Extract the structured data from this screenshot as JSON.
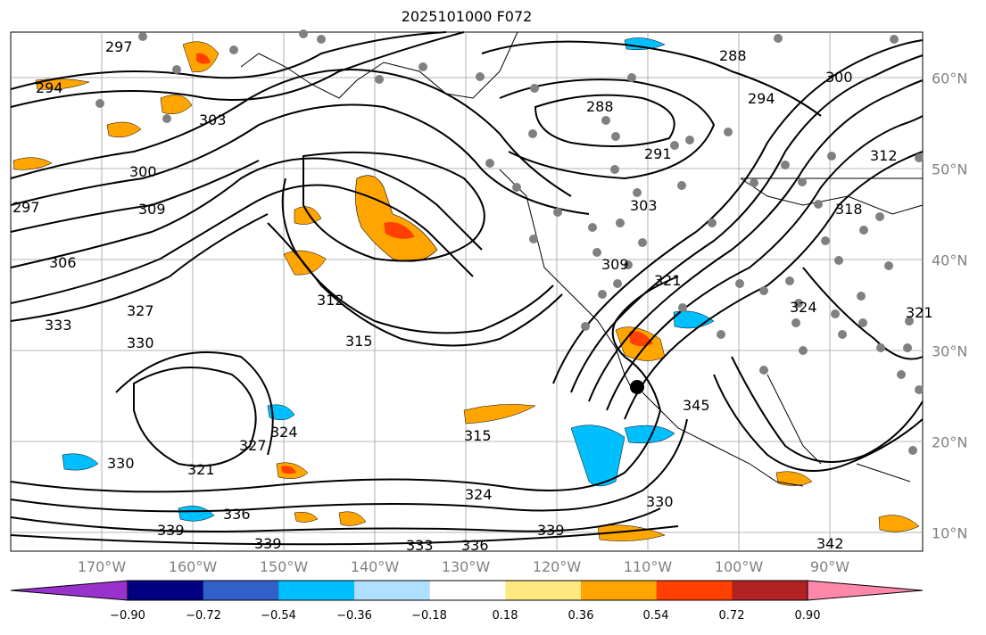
{
  "title": "2025101000 F072",
  "map": {
    "lon_ticks": [
      "170°W",
      "160°W",
      "150°W",
      "140°W",
      "130°W",
      "120°W",
      "110°W",
      "100°W",
      "90°W"
    ],
    "lat_ticks": [
      "60°N",
      "50°N",
      "40°N",
      "30°N",
      "20°N",
      "10°N"
    ],
    "contour_labels": [
      "297",
      "294",
      "300",
      "297",
      "309",
      "306",
      "303",
      "288",
      "288",
      "294",
      "300",
      "291",
      "303",
      "312",
      "309",
      "312",
      "315",
      "333",
      "327",
      "330",
      "321",
      "324",
      "315",
      "330",
      "321",
      "327",
      "324",
      "336",
      "339",
      "339",
      "333",
      "336",
      "339",
      "330",
      "342",
      "318",
      "321",
      "324",
      "345"
    ],
    "field": "geopotential thickness contours with shaded anomaly",
    "colors": {
      "land_outline": "#000000",
      "grid": "#9e9e9e",
      "station_dot": "#808080"
    }
  },
  "colorbar": {
    "ticks": [
      "−0.90",
      "−0.72",
      "−0.54",
      "−0.36",
      "−0.18",
      "0.18",
      "0.36",
      "0.54",
      "0.72",
      "0.90"
    ],
    "colors": [
      "#9932cc",
      "#000080",
      "#3060c8",
      "#00bfff",
      "#b0e0ff",
      "#ffffff",
      "#ffe880",
      "#ffa500",
      "#ff4000",
      "#b22222",
      "#ff88aa"
    ]
  }
}
